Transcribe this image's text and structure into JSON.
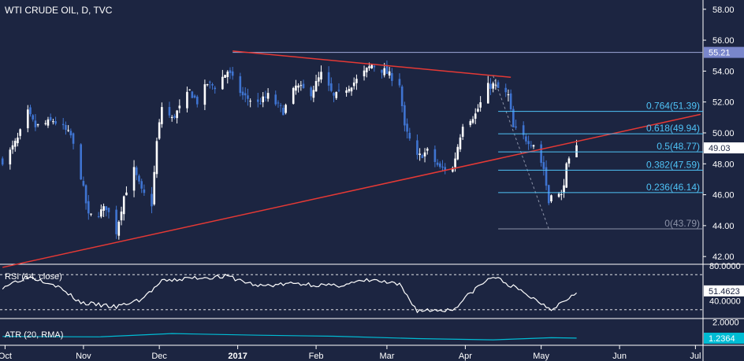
{
  "chart_data": [
    {
      "type": "candlestick",
      "title": "WTI CRUDE OIL, D, TVC",
      "ylim": [
        41.5,
        58.6
      ],
      "y_ticks": [
        "58.00",
        "56.00",
        "54.00",
        "52.00",
        "50.00",
        "48.00",
        "46.00",
        "44.00",
        "42.00"
      ],
      "x_ticks": [
        "Oct",
        "Nov",
        "Dec",
        "2017",
        "Feb",
        "Mar",
        "Apr",
        "May",
        "Jun",
        "Jul"
      ],
      "colors": {
        "up": "#ffffff",
        "down": "#3f74d1",
        "trendline": "#e53935",
        "fib": "#4fc3f7",
        "fib_zero": "#8c93a8"
      },
      "price_badges": [
        {
          "label": "55.21",
          "value": 55.21,
          "bg": "#7986cb"
        },
        {
          "label": "49.03",
          "value": 49.03,
          "bg": "#ffffff"
        }
      ],
      "fib_levels": [
        {
          "label": "0.764(51.39)",
          "value": 51.39
        },
        {
          "label": "0.618(49.94)",
          "value": 49.94
        },
        {
          "label": "0.5(48.77)",
          "value": 48.77
        },
        {
          "label": "0.382(47.59)",
          "value": 47.59
        },
        {
          "label": "0.236(46.14)",
          "value": 46.14
        },
        {
          "label": "0(43.79)",
          "value": 43.79
        }
      ],
      "trendlines": [
        {
          "name": "falling resistance",
          "points": [
            [
              "2016-12-30",
              55.3
            ],
            [
              "2017-04-19",
              53.6
            ]
          ]
        },
        {
          "name": "rising support",
          "points": [
            [
              "2016-09-30",
              41.3
            ],
            [
              "2017-07-03",
              51.2
            ]
          ]
        }
      ],
      "closes": [
        [
          "2016-09-30",
          48.2
        ],
        [
          "2016-10-03",
          48.8
        ],
        [
          "2016-10-06",
          49.6
        ],
        [
          "2016-10-10",
          51.3
        ],
        [
          "2016-10-13",
          50.4
        ],
        [
          "2016-10-17",
          50.6
        ],
        [
          "2016-10-20",
          50.8
        ],
        [
          "2016-10-24",
          50.3
        ],
        [
          "2016-10-27",
          49.8
        ],
        [
          "2016-10-31",
          47.2
        ],
        [
          "2016-11-03",
          44.6
        ],
        [
          "2016-11-07",
          44.8
        ],
        [
          "2016-11-10",
          45.2
        ],
        [
          "2016-11-14",
          43.6
        ],
        [
          "2016-11-17",
          45.9
        ],
        [
          "2016-11-21",
          47.6
        ],
        [
          "2016-11-24",
          46.2
        ],
        [
          "2016-11-28",
          45.4
        ],
        [
          "2016-11-30",
          49.4
        ],
        [
          "2016-12-02",
          51.7
        ],
        [
          "2016-12-06",
          50.9
        ],
        [
          "2016-12-09",
          51.6
        ],
        [
          "2016-12-13",
          52.7
        ],
        [
          "2016-12-16",
          52.0
        ],
        [
          "2016-12-20",
          53.2
        ],
        [
          "2016-12-23",
          53.0
        ],
        [
          "2016-12-28",
          54.0
        ],
        [
          "2017-01-03",
          52.4
        ],
        [
          "2017-01-09",
          51.9
        ],
        [
          "2017-01-13",
          52.4
        ],
        [
          "2017-01-19",
          51.4
        ],
        [
          "2017-01-24",
          53.0
        ],
        [
          "2017-01-30",
          52.6
        ],
        [
          "2017-02-03",
          53.8
        ],
        [
          "2017-02-08",
          52.3
        ],
        [
          "2017-02-13",
          52.9
        ],
        [
          "2017-02-17",
          53.4
        ],
        [
          "2017-02-23",
          54.4
        ],
        [
          "2017-02-28",
          54.0
        ],
        [
          "2017-03-06",
          53.2
        ],
        [
          "2017-03-08",
          50.3
        ],
        [
          "2017-03-13",
          48.4
        ],
        [
          "2017-03-17",
          48.8
        ],
        [
          "2017-03-22",
          47.7
        ],
        [
          "2017-03-27",
          47.7
        ],
        [
          "2017-03-31",
          50.6
        ],
        [
          "2017-04-05",
          51.2
        ],
        [
          "2017-04-10",
          53.0
        ],
        [
          "2017-04-12",
          53.1
        ],
        [
          "2017-04-18",
          52.4
        ],
        [
          "2017-04-20",
          50.3
        ],
        [
          "2017-04-25",
          49.6
        ],
        [
          "2017-04-28",
          49.3
        ],
        [
          "2017-05-02",
          47.7
        ],
        [
          "2017-05-04",
          45.5
        ],
        [
          "2017-05-05",
          46.2
        ],
        [
          "2017-05-09",
          45.9
        ],
        [
          "2017-05-11",
          47.8
        ],
        [
          "2017-05-15",
          49.03
        ]
      ]
    },
    {
      "type": "line",
      "title": "RSI (14, close)",
      "ylim": [
        20,
        80
      ],
      "y_ticks": [
        "80.0000",
        "40.0000"
      ],
      "reference_lines": [
        70,
        30
      ],
      "price_badges": [
        {
          "label": "51.4623",
          "value": 51.4623,
          "bg": "#ffffff"
        }
      ],
      "series": [
        {
          "values": [
            [
              "2016-09-30",
              56
            ],
            [
              "2016-10-10",
              68
            ],
            [
              "2016-10-20",
              60
            ],
            [
              "2016-10-31",
              38
            ],
            [
              "2016-11-14",
              33
            ],
            [
              "2016-11-24",
              42
            ],
            [
              "2016-12-02",
              62
            ],
            [
              "2016-12-13",
              66
            ],
            [
              "2016-12-28",
              68
            ],
            [
              "2017-01-09",
              57
            ],
            [
              "2017-01-24",
              60
            ],
            [
              "2017-02-08",
              57
            ],
            [
              "2017-02-23",
              64
            ],
            [
              "2017-03-06",
              58
            ],
            [
              "2017-03-13",
              29
            ],
            [
              "2017-03-27",
              30
            ],
            [
              "2017-04-05",
              54
            ],
            [
              "2017-04-12",
              68
            ],
            [
              "2017-04-20",
              56
            ],
            [
              "2017-05-02",
              36
            ],
            [
              "2017-05-05",
              31
            ],
            [
              "2017-05-11",
              42
            ],
            [
              "2017-05-15",
              51.46
            ]
          ]
        }
      ]
    },
    {
      "type": "line",
      "title": "ATR (20, RMA)",
      "ylim": [
        0.9,
        2.1
      ],
      "y_ticks": [
        "2.0000"
      ],
      "price_badges": [
        {
          "label": "1.2364",
          "value": 1.2364,
          "bg": "#00bcd4"
        }
      ],
      "series": [
        {
          "values": [
            [
              "2016-09-30",
              1.32
            ],
            [
              "2016-11-07",
              1.3
            ],
            [
              "2016-12-06",
              1.46
            ],
            [
              "2017-01-09",
              1.38
            ],
            [
              "2017-02-08",
              1.33
            ],
            [
              "2017-03-13",
              1.22
            ],
            [
              "2017-04-12",
              1.16
            ],
            [
              "2017-05-05",
              1.26
            ],
            [
              "2017-05-15",
              1.24
            ]
          ]
        }
      ]
    }
  ]
}
